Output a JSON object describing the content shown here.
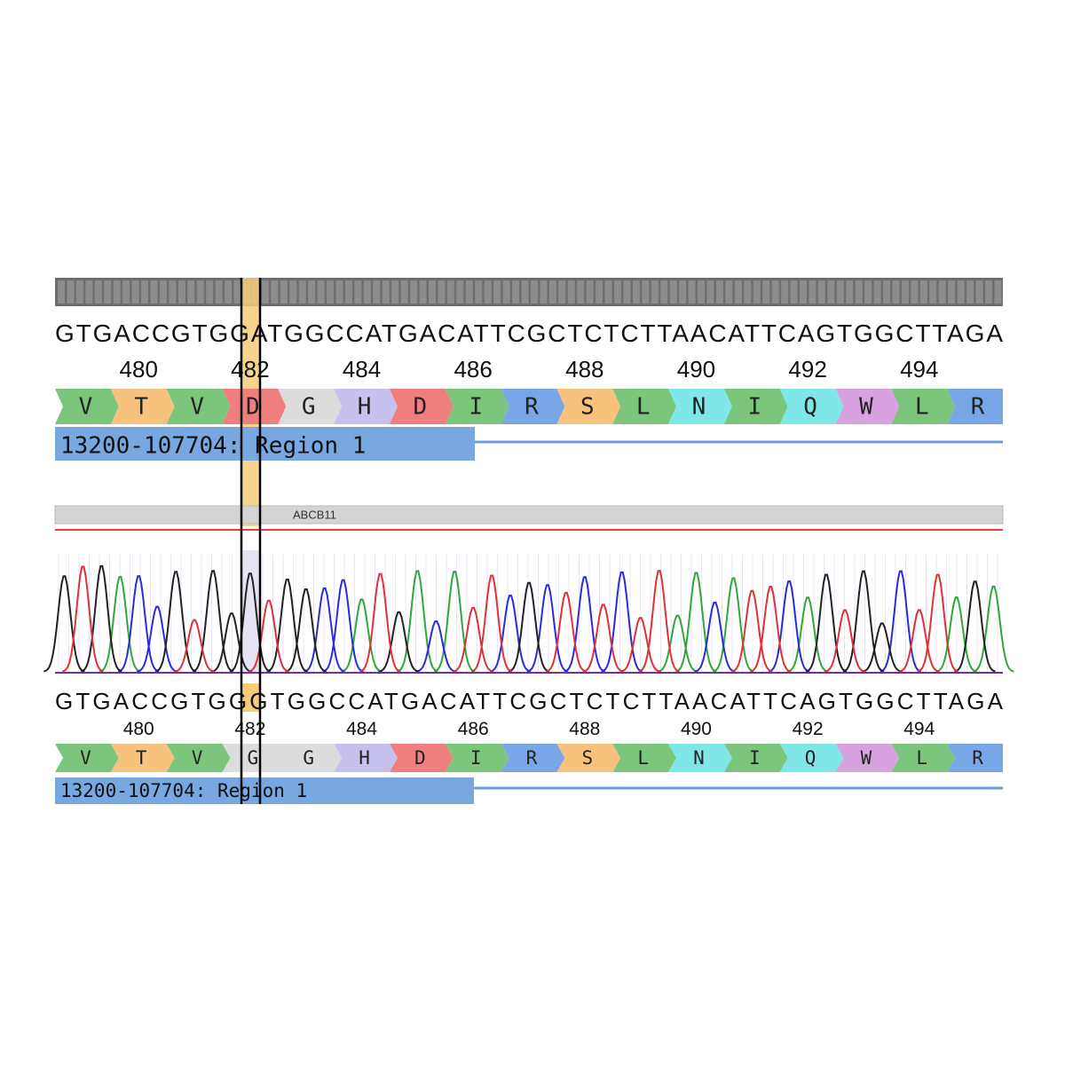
{
  "reference": {
    "sequence": "GTGACCGTGGATGGCCATGACATTCGCTCTCTTAACATTCAGTGGCTTAGA",
    "positions": [
      480,
      482,
      484,
      486,
      488,
      490,
      492,
      494
    ],
    "amino_acids": [
      "V",
      "T",
      "V",
      "D",
      "G",
      "H",
      "D",
      "I",
      "R",
      "S",
      "L",
      "N",
      "I",
      "Q",
      "W",
      "L",
      "R"
    ],
    "region": "13200-107704: Region 1"
  },
  "track": {
    "label": "ABCB11"
  },
  "sample": {
    "sequence": "GTGACCGTGGGTGGCCATGACATTCGCTCTCTTAACATTCAGTGGCTTAGA",
    "positions": [
      480,
      482,
      484,
      486,
      488,
      490,
      492,
      494
    ],
    "amino_acids": [
      "V",
      "T",
      "V",
      "G",
      "G",
      "H",
      "D",
      "I",
      "R",
      "S",
      "L",
      "N",
      "I",
      "Q",
      "W",
      "L",
      "R"
    ],
    "region": "13200-107704: Region 1"
  },
  "base_colors": {
    "A": "#2fa83a",
    "C": "#2b2bdc",
    "G": "#222222",
    "T": "#e0303a"
  },
  "aa_colors": {
    "V": "#7cc57c",
    "T": "#f7c17e",
    "D": "#ef7f7f",
    "G": "#dcdcdc",
    "H": "#c7c1ee",
    "I": "#7cc57c",
    "R": "#78a6e6",
    "S": "#f7c17e",
    "L": "#7cc57c",
    "N": "#7fe7e7",
    "Q": "#7fe7e7",
    "W": "#d8a1e0"
  }
}
